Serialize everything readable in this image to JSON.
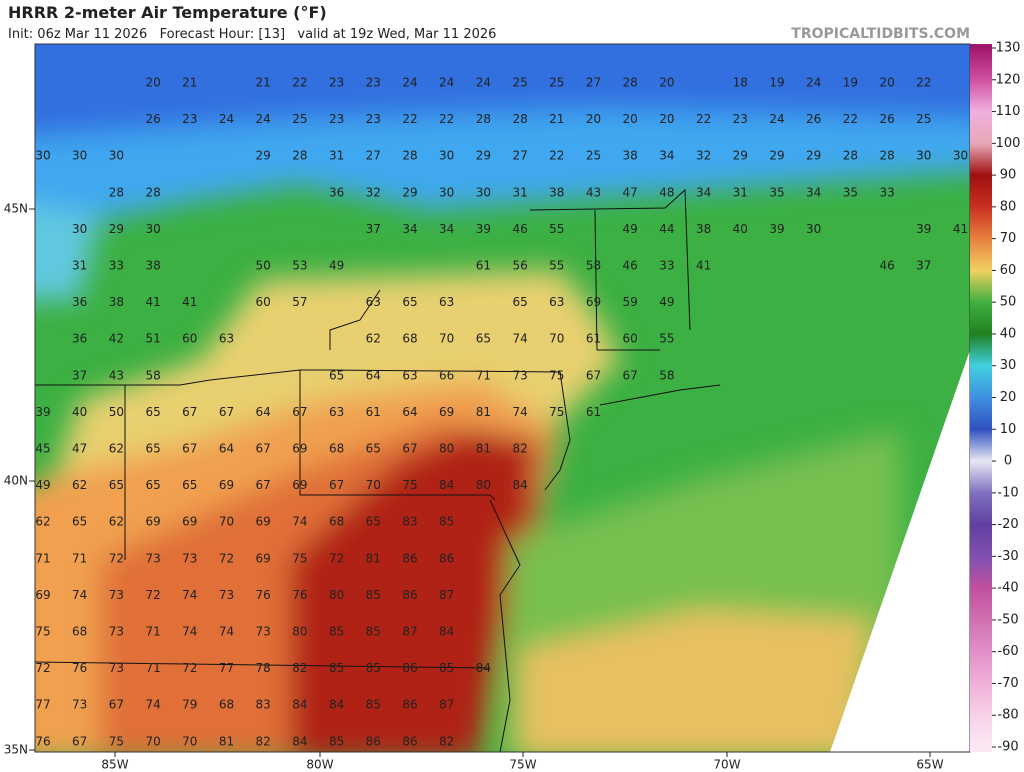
{
  "header": {
    "title": "HRRR 2-meter Air Temperature (°F)",
    "subtitle": "Init: 06z Mar 11 2026   Forecast Hour: [13]   valid at 19z Wed, Mar 11 2026",
    "site": "TROPICALTIDBITS.COM"
  },
  "map": {
    "lat_labels": [
      "45N",
      "40N",
      "35N"
    ],
    "lon_labels": [
      "85W",
      "80W",
      "75W",
      "70W",
      "65W"
    ],
    "temperature_rows": [
      [
        null,
        null,
        null,
        20,
        21,
        null,
        21,
        22,
        23,
        23,
        24,
        24,
        24,
        25,
        25,
        27,
        28,
        20,
        null,
        18,
        19,
        24,
        19,
        20,
        22,
        null
      ],
      [
        null,
        null,
        null,
        26,
        23,
        24,
        24,
        25,
        23,
        23,
        22,
        22,
        28,
        28,
        21,
        20,
        20,
        20,
        22,
        23,
        24,
        26,
        22,
        26,
        25,
        null
      ],
      [
        30,
        30,
        30,
        null,
        null,
        null,
        29,
        28,
        31,
        27,
        28,
        30,
        29,
        27,
        22,
        25,
        38,
        34,
        32,
        29,
        29,
        29,
        28,
        28,
        30,
        30
      ],
      [
        null,
        null,
        28,
        28,
        null,
        null,
        null,
        null,
        36,
        32,
        29,
        30,
        30,
        31,
        38,
        43,
        47,
        48,
        34,
        31,
        35,
        34,
        35,
        33,
        null,
        null
      ],
      [
        null,
        30,
        29,
        30,
        null,
        null,
        null,
        null,
        null,
        37,
        34,
        34,
        39,
        46,
        55,
        null,
        49,
        44,
        38,
        40,
        39,
        30,
        null,
        null,
        39,
        41
      ],
      [
        null,
        31,
        33,
        38,
        null,
        null,
        50,
        53,
        49,
        null,
        null,
        null,
        61,
        56,
        55,
        58,
        46,
        33,
        41,
        null,
        null,
        null,
        null,
        46,
        37,
        null
      ],
      [
        null,
        36,
        38,
        41,
        41,
        null,
        60,
        57,
        null,
        63,
        65,
        63,
        null,
        65,
        63,
        69,
        59,
        49,
        null,
        null,
        null,
        null,
        null,
        null,
        null,
        null
      ],
      [
        null,
        36,
        42,
        51,
        60,
        63,
        null,
        null,
        null,
        62,
        68,
        70,
        65,
        74,
        70,
        61,
        60,
        55,
        null,
        null,
        null,
        null,
        null,
        null,
        null,
        null
      ],
      [
        null,
        37,
        43,
        58,
        null,
        null,
        null,
        null,
        65,
        64,
        63,
        66,
        71,
        73,
        75,
        67,
        67,
        58,
        null,
        null,
        null,
        null,
        null,
        null,
        null,
        null
      ],
      [
        39,
        40,
        50,
        65,
        67,
        67,
        64,
        67,
        63,
        61,
        64,
        69,
        81,
        74,
        75,
        61,
        null,
        null,
        null,
        null,
        null,
        null,
        null,
        null,
        null,
        null
      ],
      [
        45,
        47,
        62,
        65,
        67,
        64,
        67,
        69,
        68,
        65,
        67,
        80,
        81,
        82,
        null,
        null,
        null,
        null,
        null,
        null,
        null,
        null,
        null,
        null,
        null,
        null
      ],
      [
        49,
        62,
        65,
        65,
        65,
        69,
        67,
        69,
        67,
        70,
        75,
        84,
        80,
        84,
        null,
        null,
        null,
        null,
        null,
        null,
        null,
        null,
        null,
        null,
        null,
        null
      ],
      [
        62,
        65,
        62,
        69,
        69,
        70,
        69,
        74,
        68,
        65,
        83,
        85,
        null,
        null,
        null,
        null,
        null,
        null,
        null,
        null,
        null,
        null,
        null,
        null,
        null,
        null
      ],
      [
        71,
        71,
        72,
        73,
        73,
        72,
        69,
        75,
        72,
        81,
        86,
        86,
        null,
        null,
        null,
        null,
        null,
        null,
        null,
        null,
        null,
        null,
        null,
        null,
        null,
        null
      ],
      [
        69,
        74,
        73,
        72,
        74,
        73,
        76,
        76,
        80,
        85,
        86,
        87,
        null,
        null,
        null,
        null,
        null,
        null,
        null,
        null,
        null,
        null,
        null,
        null,
        null,
        null
      ],
      [
        75,
        68,
        73,
        71,
        74,
        74,
        73,
        80,
        85,
        85,
        87,
        84,
        null,
        null,
        null,
        null,
        null,
        null,
        null,
        null,
        null,
        null,
        null,
        null,
        null,
        null
      ],
      [
        72,
        76,
        73,
        71,
        72,
        77,
        78,
        82,
        85,
        85,
        86,
        85,
        84,
        null,
        null,
        null,
        null,
        null,
        null,
        null,
        null,
        null,
        null,
        null,
        null,
        null
      ],
      [
        77,
        73,
        67,
        74,
        79,
        68,
        83,
        84,
        84,
        85,
        86,
        87,
        null,
        null,
        null,
        null,
        null,
        null,
        null,
        null,
        null,
        null,
        null,
        null,
        null,
        null
      ],
      [
        76,
        67,
        75,
        70,
        70,
        81,
        82,
        84,
        85,
        86,
        86,
        82,
        null,
        null,
        null,
        null,
        null,
        null,
        null,
        null,
        null,
        null,
        null,
        null,
        null,
        null
      ]
    ]
  },
  "colorbar": {
    "ticks": [
      130,
      120,
      110,
      100,
      90,
      80,
      70,
      60,
      50,
      40,
      30,
      20,
      10,
      0,
      -10,
      -20,
      -30,
      -40,
      -50,
      -60,
      -70,
      -80,
      -90
    ],
    "colors": [
      "#a0186c",
      "#d050a0",
      "#f0b0e0",
      "#e8a8b8",
      "#a01010",
      "#c83020",
      "#e88040",
      "#f0d060",
      "#40b040",
      "#208020",
      "#40d0e0",
      "#4090e0",
      "#3050c0",
      "#e8e8f4",
      "#8070c0",
      "#6040a0",
      "#8050b0",
      "#c050a0",
      "#d070b0",
      "#e090c8",
      "#f0b0d8",
      "#f8d0e8",
      "#fce8f4"
    ]
  }
}
